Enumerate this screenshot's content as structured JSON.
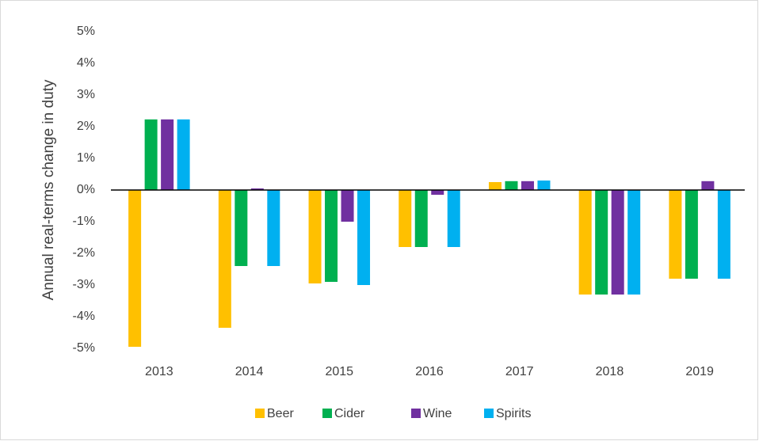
{
  "chart_data": {
    "type": "bar",
    "y_label": "Annual real-terms change in duty",
    "categories": [
      "2013",
      "2014",
      "2015",
      "2016",
      "2017",
      "2018",
      "2019"
    ],
    "series": [
      {
        "name": "Beer",
        "color": "#FFC000",
        "values": [
          -4.95,
          -4.35,
          -2.95,
          -1.8,
          0.25,
          -3.3,
          -2.8
        ]
      },
      {
        "name": "Cider",
        "color": "#00B050",
        "values": [
          2.23,
          -2.4,
          -2.9,
          -1.8,
          0.28,
          -3.3,
          -2.8
        ]
      },
      {
        "name": "Wine",
        "color": "#7030A0",
        "values": [
          2.23,
          0.05,
          -1.0,
          -0.15,
          0.28,
          -3.3,
          0.28
        ]
      },
      {
        "name": "Spirits",
        "color": "#00B0F0",
        "values": [
          2.23,
          -2.4,
          -3.0,
          -1.8,
          0.3,
          -3.3,
          -2.8
        ]
      }
    ],
    "ylim": [
      -5,
      5
    ],
    "yticks": [
      {
        "value": -5,
        "label": "-5%"
      },
      {
        "value": -4,
        "label": "-4%"
      },
      {
        "value": -3,
        "label": "-3%"
      },
      {
        "value": -2,
        "label": "-2%"
      },
      {
        "value": -1,
        "label": "-1%"
      },
      {
        "value": 0,
        "label": "0%"
      },
      {
        "value": 1,
        "label": "1%"
      },
      {
        "value": 2,
        "label": "2%"
      },
      {
        "value": 3,
        "label": "3%"
      },
      {
        "value": 4,
        "label": "4%"
      },
      {
        "value": 5,
        "label": "5%"
      }
    ],
    "legend": "bottom"
  }
}
